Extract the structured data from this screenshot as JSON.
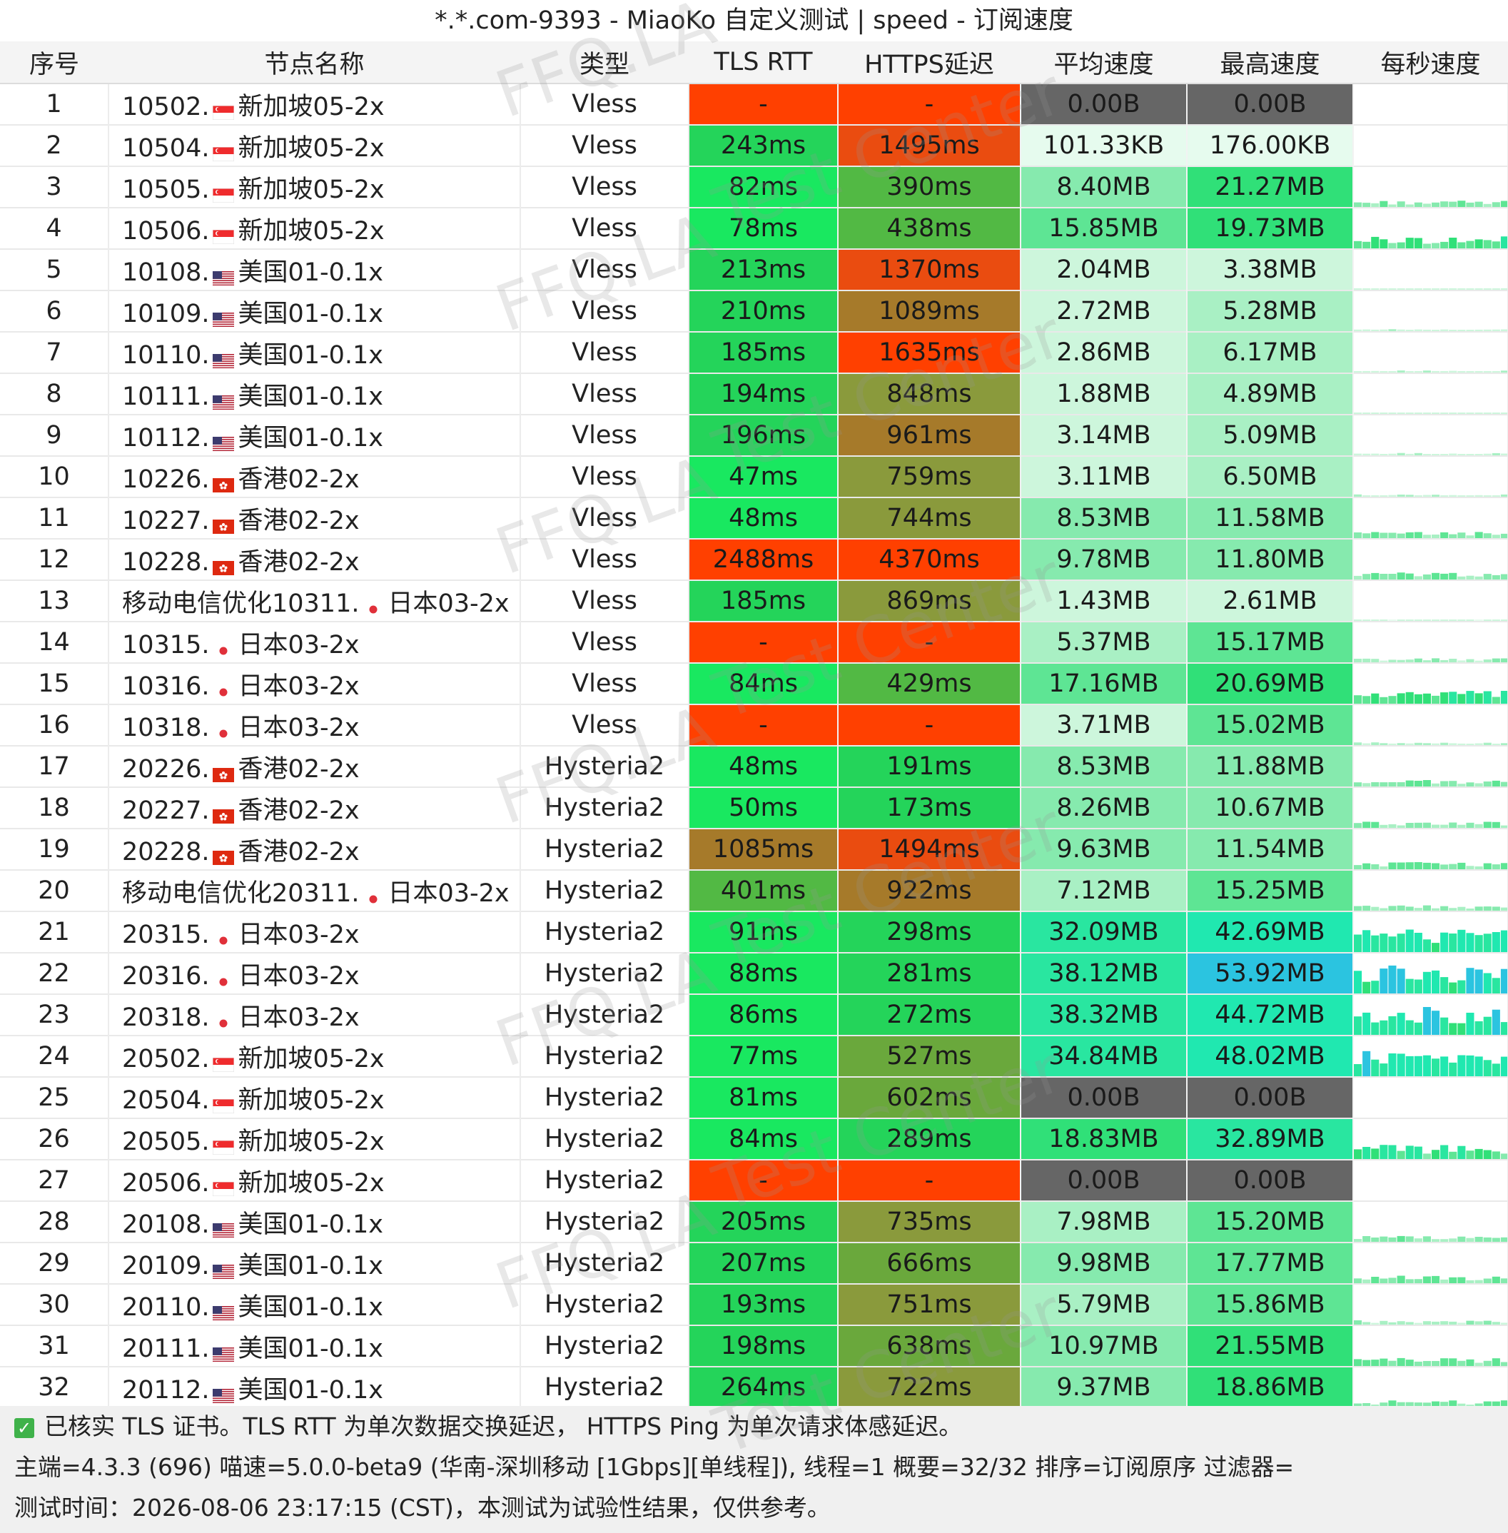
{
  "title": "*.*.com-9393 - MiaoKo 自定义测试 | speed - 订阅速度",
  "columns": [
    "序号",
    "节点名称",
    "类型",
    "TLS RTT",
    "HTTPS延迟",
    "平均速度",
    "最高速度",
    "每秒速度"
  ],
  "rows": [
    {
      "n": "1",
      "name": "10502.",
      "flag": "sg",
      "region": "新加坡05-2x",
      "type": "Vless",
      "tls": "-",
      "https": "-",
      "avg": "0.00B",
      "max": "0.00B"
    },
    {
      "n": "2",
      "name": "10504.",
      "flag": "sg",
      "region": "新加坡05-2x",
      "type": "Vless",
      "tls": "243ms",
      "https": "1495ms",
      "avg": "101.33KB",
      "max": "176.00KB"
    },
    {
      "n": "3",
      "name": "10505.",
      "flag": "sg",
      "region": "新加坡05-2x",
      "type": "Vless",
      "tls": "82ms",
      "https": "390ms",
      "avg": "8.40MB",
      "max": "21.27MB"
    },
    {
      "n": "4",
      "name": "10506.",
      "flag": "sg",
      "region": "新加坡05-2x",
      "type": "Vless",
      "tls": "78ms",
      "https": "438ms",
      "avg": "15.85MB",
      "max": "19.73MB"
    },
    {
      "n": "5",
      "name": "10108.",
      "flag": "us",
      "region": "美国01-0.1x",
      "type": "Vless",
      "tls": "213ms",
      "https": "1370ms",
      "avg": "2.04MB",
      "max": "3.38MB"
    },
    {
      "n": "6",
      "name": "10109.",
      "flag": "us",
      "region": "美国01-0.1x",
      "type": "Vless",
      "tls": "210ms",
      "https": "1089ms",
      "avg": "2.72MB",
      "max": "5.28MB"
    },
    {
      "n": "7",
      "name": "10110.",
      "flag": "us",
      "region": "美国01-0.1x",
      "type": "Vless",
      "tls": "185ms",
      "https": "1635ms",
      "avg": "2.86MB",
      "max": "6.17MB"
    },
    {
      "n": "8",
      "name": "10111.",
      "flag": "us",
      "region": "美国01-0.1x",
      "type": "Vless",
      "tls": "194ms",
      "https": "848ms",
      "avg": "1.88MB",
      "max": "4.89MB"
    },
    {
      "n": "9",
      "name": "10112.",
      "flag": "us",
      "region": "美国01-0.1x",
      "type": "Vless",
      "tls": "196ms",
      "https": "961ms",
      "avg": "3.14MB",
      "max": "5.09MB"
    },
    {
      "n": "10",
      "name": "10226.",
      "flag": "hk",
      "region": "香港02-2x",
      "type": "Vless",
      "tls": "47ms",
      "https": "759ms",
      "avg": "3.11MB",
      "max": "6.50MB"
    },
    {
      "n": "11",
      "name": "10227.",
      "flag": "hk",
      "region": "香港02-2x",
      "type": "Vless",
      "tls": "48ms",
      "https": "744ms",
      "avg": "8.53MB",
      "max": "11.58MB"
    },
    {
      "n": "12",
      "name": "10228.",
      "flag": "hk",
      "region": "香港02-2x",
      "type": "Vless",
      "tls": "2488ms",
      "https": "4370ms",
      "avg": "9.78MB",
      "max": "11.80MB"
    },
    {
      "n": "13",
      "name": "移动电信优化10311.",
      "flag": "jp",
      "region": "日本03-2x",
      "type": "Vless",
      "tls": "185ms",
      "https": "869ms",
      "avg": "1.43MB",
      "max": "2.61MB"
    },
    {
      "n": "14",
      "name": "10315.",
      "flag": "jp",
      "region": "日本03-2x",
      "type": "Vless",
      "tls": "-",
      "https": "-",
      "avg": "5.37MB",
      "max": "15.17MB"
    },
    {
      "n": "15",
      "name": "10316.",
      "flag": "jp",
      "region": "日本03-2x",
      "type": "Vless",
      "tls": "84ms",
      "https": "429ms",
      "avg": "17.16MB",
      "max": "20.69MB"
    },
    {
      "n": "16",
      "name": "10318.",
      "flag": "jp",
      "region": "日本03-2x",
      "type": "Vless",
      "tls": "-",
      "https": "-",
      "avg": "3.71MB",
      "max": "15.02MB"
    },
    {
      "n": "17",
      "name": "20226.",
      "flag": "hk",
      "region": "香港02-2x",
      "type": "Hysteria2",
      "tls": "48ms",
      "https": "191ms",
      "avg": "8.53MB",
      "max": "11.88MB"
    },
    {
      "n": "18",
      "name": "20227.",
      "flag": "hk",
      "region": "香港02-2x",
      "type": "Hysteria2",
      "tls": "50ms",
      "https": "173ms",
      "avg": "8.26MB",
      "max": "10.67MB"
    },
    {
      "n": "19",
      "name": "20228.",
      "flag": "hk",
      "region": "香港02-2x",
      "type": "Hysteria2",
      "tls": "1085ms",
      "https": "1494ms",
      "avg": "9.63MB",
      "max": "11.54MB"
    },
    {
      "n": "20",
      "name": "移动电信优化20311.",
      "flag": "jp",
      "region": "日本03-2x",
      "type": "Hysteria2",
      "tls": "401ms",
      "https": "922ms",
      "avg": "7.12MB",
      "max": "15.25MB"
    },
    {
      "n": "21",
      "name": "20315.",
      "flag": "jp",
      "region": "日本03-2x",
      "type": "Hysteria2",
      "tls": "91ms",
      "https": "298ms",
      "avg": "32.09MB",
      "max": "42.69MB"
    },
    {
      "n": "22",
      "name": "20316.",
      "flag": "jp",
      "region": "日本03-2x",
      "type": "Hysteria2",
      "tls": "88ms",
      "https": "281ms",
      "avg": "38.12MB",
      "max": "53.92MB"
    },
    {
      "n": "23",
      "name": "20318.",
      "flag": "jp",
      "region": "日本03-2x",
      "type": "Hysteria2",
      "tls": "86ms",
      "https": "272ms",
      "avg": "38.32MB",
      "max": "44.72MB"
    },
    {
      "n": "24",
      "name": "20502.",
      "flag": "sg",
      "region": "新加坡05-2x",
      "type": "Hysteria2",
      "tls": "77ms",
      "https": "527ms",
      "avg": "34.84MB",
      "max": "48.02MB"
    },
    {
      "n": "25",
      "name": "20504.",
      "flag": "sg",
      "region": "新加坡05-2x",
      "type": "Hysteria2",
      "tls": "81ms",
      "https": "602ms",
      "avg": "0.00B",
      "max": "0.00B"
    },
    {
      "n": "26",
      "name": "20505.",
      "flag": "sg",
      "region": "新加坡05-2x",
      "type": "Hysteria2",
      "tls": "84ms",
      "https": "289ms",
      "avg": "18.83MB",
      "max": "32.89MB"
    },
    {
      "n": "27",
      "name": "20506.",
      "flag": "sg",
      "region": "新加坡05-2x",
      "type": "Hysteria2",
      "tls": "-",
      "https": "-",
      "avg": "0.00B",
      "max": "0.00B"
    },
    {
      "n": "28",
      "name": "20108.",
      "flag": "us",
      "region": "美国01-0.1x",
      "type": "Hysteria2",
      "tls": "205ms",
      "https": "735ms",
      "avg": "7.98MB",
      "max": "15.20MB"
    },
    {
      "n": "29",
      "name": "20109.",
      "flag": "us",
      "region": "美国01-0.1x",
      "type": "Hysteria2",
      "tls": "207ms",
      "https": "666ms",
      "avg": "9.98MB",
      "max": "17.77MB"
    },
    {
      "n": "30",
      "name": "20110.",
      "flag": "us",
      "region": "美国01-0.1x",
      "type": "Hysteria2",
      "tls": "193ms",
      "https": "751ms",
      "avg": "5.79MB",
      "max": "15.86MB"
    },
    {
      "n": "31",
      "name": "20111.",
      "flag": "us",
      "region": "美国01-0.1x",
      "type": "Hysteria2",
      "tls": "198ms",
      "https": "638ms",
      "avg": "10.97MB",
      "max": "21.55MB"
    },
    {
      "n": "32",
      "name": "20112.",
      "flag": "us",
      "region": "美国01-0.1x",
      "type": "Hysteria2",
      "tls": "264ms",
      "https": "722ms",
      "avg": "9.37MB",
      "max": "18.86MB"
    }
  ],
  "footer": {
    "note": "已核实 TLS 证书。TLS RTT 为单次数据交换延迟， HTTPS Ping 为单次请求体感延迟。",
    "info": "主端=4.3.3 (696) 喵速=5.0.0-beta9 (华南-深圳移动 [1Gbps][单线程]), 线程=1 概要=32/32 排序=订阅原序 过滤器=",
    "time": "测试时间：2026-08-06 23:17:15 (CST)，本测试为试验性结果，仅供参考。"
  },
  "watermark": [
    "FFQ.LA",
    "Test Center"
  ],
  "colors": {
    "fail": "#ff4000",
    "dead": "#666666",
    "good": "#24d45a",
    "mid": "#8a9a3c",
    "bad": "#b85a1c",
    "fast": "#20e8b0",
    "fastest": "#2bc4e0"
  }
}
